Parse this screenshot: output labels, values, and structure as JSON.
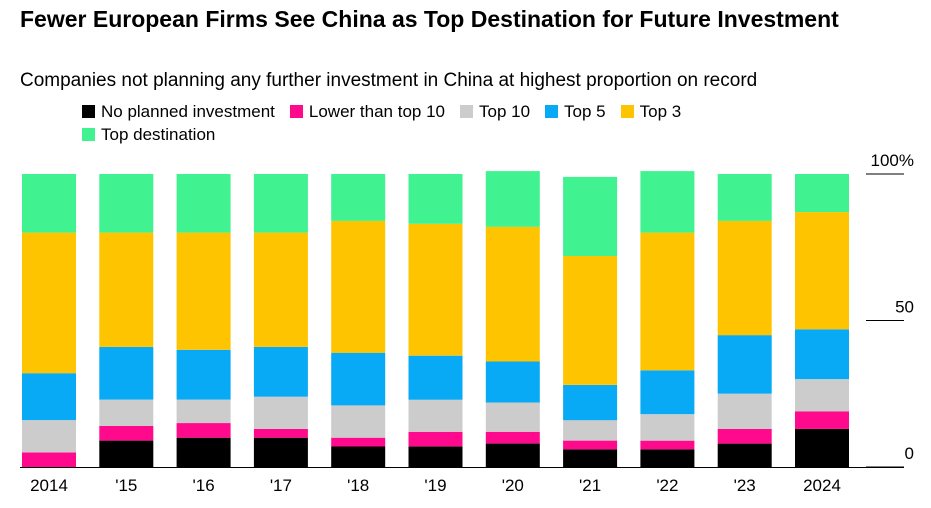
{
  "header": {
    "title": "Fewer European Firms See China as Top Destination for Future Investment",
    "subtitle": "Companies not planning any further investment in China at highest proportion on record"
  },
  "colors": {
    "No planned investment": "#000000",
    "Lower than top 10": "#ff0a8c",
    "Top 10": "#cccccc",
    "Top 5": "#09aaf5",
    "Top 3": "#ffc400",
    "Top destination": "#40f290"
  },
  "chart_data": {
    "type": "bar",
    "stacked": true,
    "categories": [
      "2014",
      "'15",
      "'16",
      "'17",
      "'18",
      "'19",
      "'20",
      "'21",
      "'22",
      "'23",
      "2024"
    ],
    "series": [
      {
        "name": "No planned investment",
        "values": [
          0,
          9,
          10,
          10,
          7,
          7,
          8,
          6,
          6,
          8,
          13
        ]
      },
      {
        "name": "Lower than top 10",
        "values": [
          5,
          5,
          5,
          3,
          3,
          5,
          4,
          3,
          3,
          5,
          6
        ]
      },
      {
        "name": "Top 10",
        "values": [
          11,
          9,
          8,
          11,
          11,
          11,
          10,
          7,
          9,
          12,
          11
        ]
      },
      {
        "name": "Top 5",
        "values": [
          16,
          18,
          17,
          17,
          18,
          15,
          14,
          12,
          15,
          20,
          17
        ]
      },
      {
        "name": "Top 3",
        "values": [
          48,
          39,
          40,
          39,
          45,
          45,
          46,
          44,
          47,
          39,
          40
        ]
      },
      {
        "name": "Top destination",
        "values": [
          20,
          20,
          20,
          20,
          16,
          17,
          19,
          27,
          21,
          16,
          13
        ]
      }
    ],
    "ylim": [
      0,
      100
    ],
    "yticks": [
      {
        "value": 0,
        "label": "0"
      },
      {
        "value": 50,
        "label": "50"
      },
      {
        "value": 100,
        "label": "100%"
      }
    ],
    "grid": false,
    "legend_position": "top-left",
    "axis_position": "right"
  }
}
